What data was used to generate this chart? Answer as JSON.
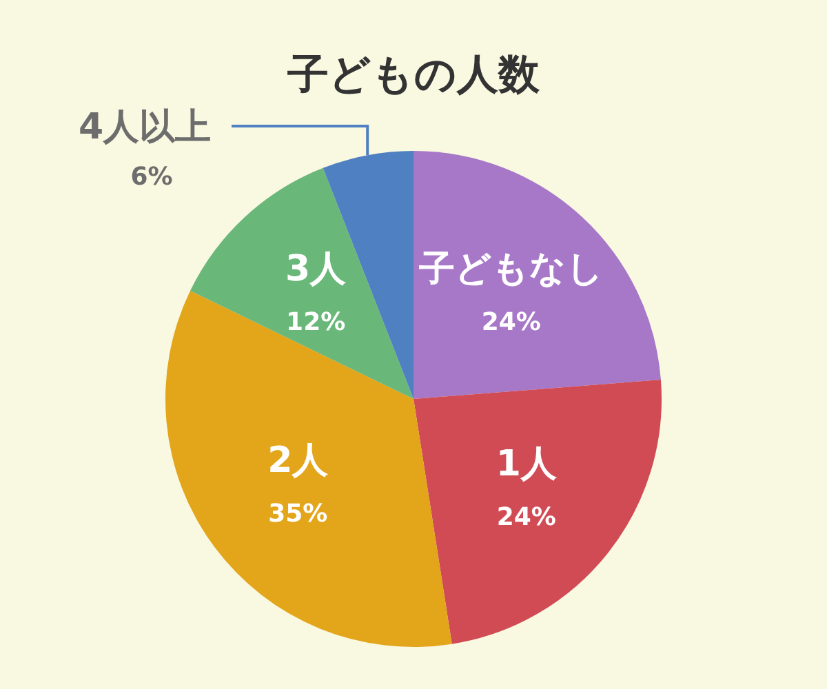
{
  "chart_data": {
    "type": "pie",
    "title": "子どもの人数",
    "categories": [
      "子どもなし",
      "1人",
      "2人",
      "3人",
      "4人以上"
    ],
    "values": [
      24,
      24,
      35,
      12,
      6
    ],
    "value_labels": [
      "24%",
      "24%",
      "35%",
      "12%",
      "6%"
    ],
    "colors": [
      "#a777c8",
      "#d14b55",
      "#e3a51a",
      "#6ab77a",
      "#4f80c1"
    ],
    "legend": false
  }
}
